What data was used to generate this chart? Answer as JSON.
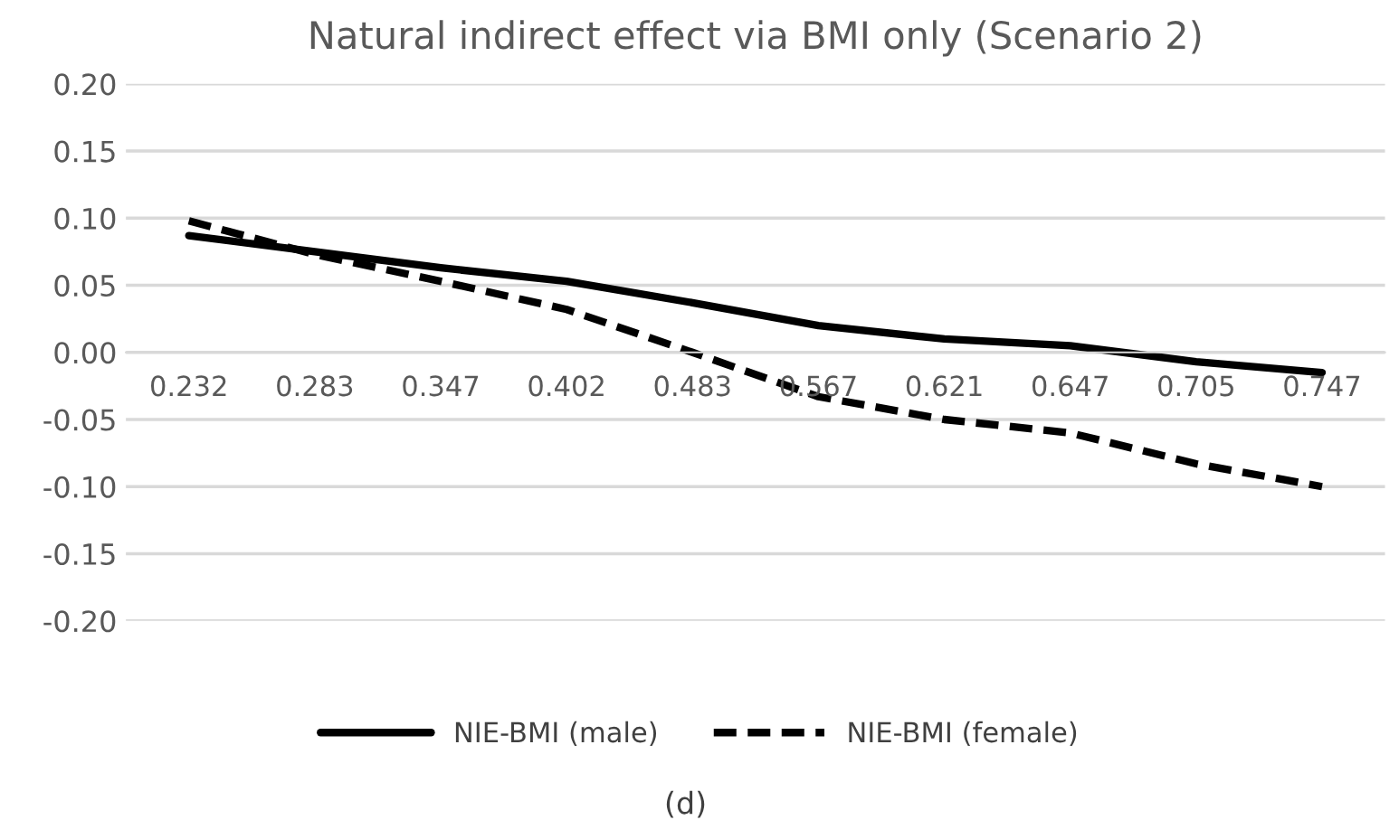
{
  "chart_data": {
    "type": "line",
    "title": "Natural indirect effect via BMI only (Scenario 2)",
    "categories": [
      "0.232",
      "0.283",
      "0.347",
      "0.402",
      "0.483",
      "0.567",
      "0.621",
      "0.647",
      "0.705",
      "0.747"
    ],
    "series": [
      {
        "name": "NIE-BMI (male)",
        "color": "#000000",
        "line_style": "solid",
        "values": [
          0.087,
          0.075,
          0.063,
          0.053,
          0.037,
          0.02,
          0.01,
          0.005,
          -0.007,
          -0.015
        ]
      },
      {
        "name": "NIE-BMI (female)",
        "color": "#000000",
        "line_style": "dashed",
        "values": [
          0.098,
          0.073,
          0.053,
          0.032,
          0.0,
          -0.033,
          -0.05,
          -0.06,
          -0.083,
          -0.1
        ]
      }
    ],
    "ylim": [
      -0.2,
      0.2
    ],
    "yticks": [
      {
        "value": -0.2,
        "label": "-0.20"
      },
      {
        "value": -0.15,
        "label": "-0.15"
      },
      {
        "value": -0.1,
        "label": "-0.10"
      },
      {
        "value": -0.05,
        "label": "-0.05"
      },
      {
        "value": 0,
        "label": "0.00"
      },
      {
        "value": 0.05,
        "label": "0.05"
      },
      {
        "value": 0.1,
        "label": "0.10"
      },
      {
        "value": 0.15,
        "label": "0.15"
      },
      {
        "value": 0.2,
        "label": "0.20"
      }
    ],
    "grid": "y",
    "legend": "bottom",
    "marker": "none",
    "annotations": [
      "(d)"
    ]
  }
}
